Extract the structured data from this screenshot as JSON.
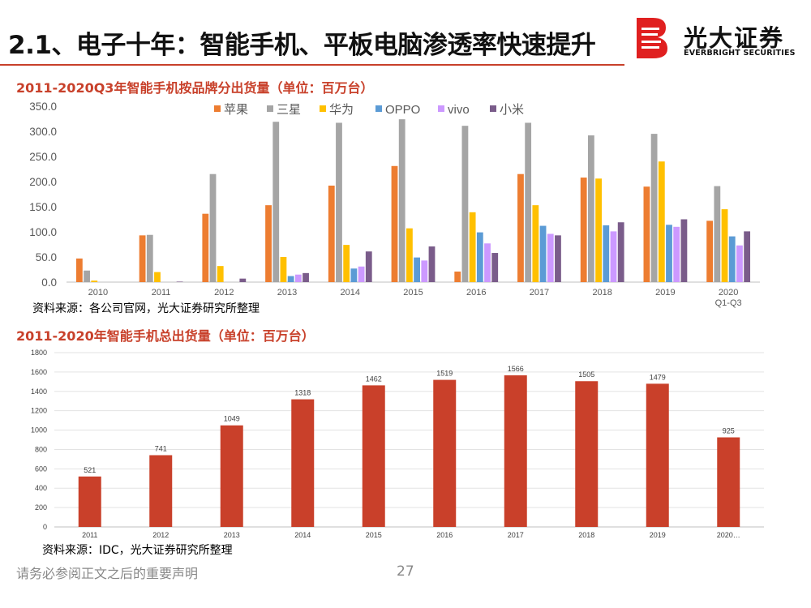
{
  "header": {
    "title": "2.1、电子十年：智能手机、平板电脑渗透率快速提升",
    "logo_cn": "光大证券",
    "logo_en": "EVERBRIGHT SECURITIES",
    "colors": {
      "accent": "#c8402a",
      "logo_red": "#e02020"
    }
  },
  "section1": {
    "title": "2011-2020Q3年智能手机按品牌分出货量（单位：百万台）",
    "source": "资料来源：各公司官网，光大证券研究所整理"
  },
  "section2": {
    "title": "2011-2020年智能手机总出货量（单位：百万台）",
    "source": "资料来源：IDC，光大证券研究所整理"
  },
  "footer": {
    "note": "请务必参阅正文之后的重要声明",
    "page_number": "27"
  },
  "chart_data": [
    {
      "type": "bar",
      "title": "2011-2020Q3年智能手机按品牌分出货量（单位：百万台）",
      "categories": [
        "2010",
        "2011",
        "2012",
        "2013",
        "2014",
        "2015",
        "2016",
        "2017",
        "2018",
        "2019",
        "2020 Q1-Q3"
      ],
      "category_lines": [
        [
          "2010"
        ],
        [
          "2011"
        ],
        [
          "2012"
        ],
        [
          "2013"
        ],
        [
          "2014"
        ],
        [
          "2015"
        ],
        [
          "2016"
        ],
        [
          "2017"
        ],
        [
          "2018"
        ],
        [
          "2019"
        ],
        [
          "2020",
          "Q1-Q3"
        ]
      ],
      "series": [
        {
          "name": "苹果",
          "color": "#ed7d31",
          "values": [
            47,
            93,
            136,
            153,
            192,
            231,
            21,
            215,
            208,
            190,
            122
          ]
        },
        {
          "name": "三星",
          "color": "#a5a5a5",
          "values": [
            23,
            94,
            215,
            319,
            317,
            324,
            311,
            317,
            292,
            295,
            191
          ]
        },
        {
          "name": "华为",
          "color": "#ffc000",
          "values": [
            3,
            20,
            32,
            50,
            74,
            107,
            139,
            153,
            206,
            240,
            145
          ]
        },
        {
          "name": "OPPO",
          "color": "#5b9bd5",
          "values": [
            0,
            0,
            0,
            12,
            27,
            49,
            99,
            112,
            113,
            114,
            91
          ]
        },
        {
          "name": "vivo",
          "color": "#cc99ff",
          "values": [
            0,
            0,
            0,
            15,
            31,
            43,
            77,
            96,
            101,
            110,
            73
          ]
        },
        {
          "name": "小米",
          "color": "#7a5c8a",
          "values": [
            0,
            1,
            7,
            18,
            61,
            71,
            58,
            93,
            119,
            125,
            101
          ]
        }
      ],
      "y_ticks": [
        "0.0",
        "50.0",
        "100.0",
        "150.0",
        "200.0",
        "250.0",
        "300.0",
        "350.0"
      ],
      "ylim": [
        0,
        350
      ],
      "legend_position": "top",
      "grid": false
    },
    {
      "type": "bar",
      "title": "2011-2020年智能手机总出货量（单位：百万台）",
      "categories": [
        "2011",
        "2012",
        "2013",
        "2014",
        "2015",
        "2016",
        "2017",
        "2018",
        "2019",
        "2020…"
      ],
      "values": [
        521,
        741,
        1049,
        1318,
        1462,
        1519,
        1566,
        1505,
        1479,
        925
      ],
      "y_ticks": [
        "0",
        "200",
        "400",
        "600",
        "800",
        "1000",
        "1200",
        "1400",
        "1600",
        "1800"
      ],
      "ylim": [
        0,
        1800
      ],
      "bar_color": "#c9402a",
      "grid": true
    }
  ]
}
